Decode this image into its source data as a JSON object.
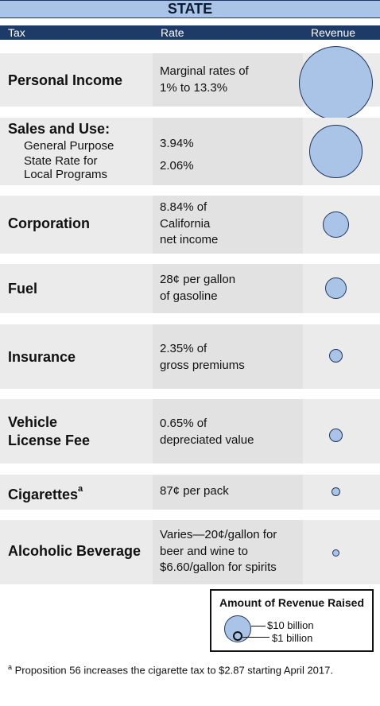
{
  "header": {
    "title": "STATE"
  },
  "columns": {
    "tax": "Tax",
    "rate": "Rate",
    "revenue": "Revenue"
  },
  "rows": [
    {
      "tax": "Personal Income",
      "rate": [
        "Marginal rates of",
        "1% to 13.3%"
      ]
    },
    {
      "tax": "Sales and Use:",
      "sub": [
        "General Purpose",
        "State Rate for",
        "Local Programs"
      ],
      "rate": [
        "3.94%",
        "2.06%"
      ]
    },
    {
      "tax": "Corporation",
      "rate": [
        "8.84% of",
        "California",
        "net income"
      ]
    },
    {
      "tax": "Fuel",
      "rate": [
        "28¢ per gallon",
        "of gasoline"
      ]
    },
    {
      "tax": "Insurance",
      "rate": [
        "2.35% of",
        "gross premiums"
      ]
    },
    {
      "tax": "Vehicle",
      "tax2": "License Fee",
      "rate": [
        "0.65% of",
        "depreciated value"
      ]
    },
    {
      "tax": "Cigarettes",
      "sup": "a",
      "rate": [
        "87¢ per pack"
      ]
    },
    {
      "tax": "Alcoholic Beverage",
      "rate": [
        "Varies—20¢/gallon for",
        "beer and wine to",
        "$6.60/gallon for spirits"
      ]
    }
  ],
  "legend": {
    "title": "Amount of Revenue Raised",
    "large": "$10 billion",
    "small": "$1 billion"
  },
  "footnote": {
    "marker": "a",
    "text": " Proposition 56 increases the cigarette tax to $2.87 starting April 2017."
  },
  "colors": {
    "bubble_fill": "#a9c4e6",
    "bubble_stroke": "#1f3660",
    "header_bg": "#1e3a66"
  }
}
